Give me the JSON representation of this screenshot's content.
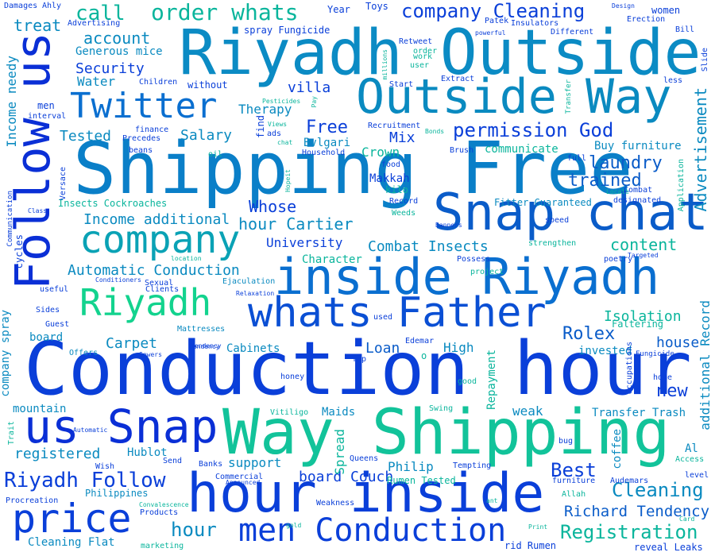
{
  "words": [
    {
      "text": "Conduction hour",
      "color": "#0a3fd9",
      "vertical": false
    },
    {
      "text": "Shipping Free",
      "color": "#0a7fc8",
      "vertical": false
    },
    {
      "text": "Riyadh Outside",
      "color": "#0b8bc4",
      "vertical": false
    },
    {
      "text": "Way Shipping",
      "color": "#12c39a",
      "vertical": false
    },
    {
      "text": "hour inside",
      "color": "#0a3fd9",
      "vertical": false
    },
    {
      "text": "inside Riyadh",
      "color": "#0a6fd0",
      "vertical": false
    },
    {
      "text": "Snap chat",
      "color": "#0a5cc9",
      "vertical": false
    },
    {
      "text": "Follow us",
      "color": "#0a2fd6",
      "vertical": true
    },
    {
      "text": "Outside Way",
      "color": "#0a8ac0",
      "vertical": false
    },
    {
      "text": "us Snap",
      "color": "#0a2fd6",
      "vertical": false
    },
    {
      "text": "whats Father",
      "color": "#0a4fd4",
      "vertical": false
    },
    {
      "text": "price",
      "color": "#0a3fd9",
      "vertical": false
    },
    {
      "text": "company",
      "color": "#0aa2b5",
      "vertical": false
    },
    {
      "text": "Twitter",
      "color": "#0a6fd0",
      "vertical": false
    },
    {
      "text": "Riyadh",
      "color": "#13d38e",
      "vertical": false
    },
    {
      "text": "men Conduction",
      "color": "#0a3fd9",
      "vertical": false
    },
    {
      "text": "order whats",
      "color": "#0ab59c",
      "vertical": false
    },
    {
      "text": "call",
      "color": "#0ab59c",
      "vertical": false
    },
    {
      "text": "company Cleaning",
      "color": "#0a3fd9",
      "vertical": false
    },
    {
      "text": "permission God",
      "color": "#0a3fd9",
      "vertical": false
    },
    {
      "text": "Riyadh Follow",
      "color": "#0a3fd9",
      "vertical": false
    },
    {
      "text": "Registration",
      "color": "#0ab59c",
      "vertical": false
    },
    {
      "text": "Richard Tendency",
      "color": "#0a5cc9",
      "vertical": false
    },
    {
      "text": "Cleaning",
      "color": "#0a8ac0",
      "vertical": false
    },
    {
      "text": "Best",
      "color": "#0a3fd9",
      "vertical": false
    },
    {
      "text": "Rolex",
      "color": "#0a5cc9",
      "vertical": false
    },
    {
      "text": "laundry",
      "color": "#0a5cc9",
      "vertical": false
    },
    {
      "text": "trained",
      "color": "#0a5cc9",
      "vertical": false
    },
    {
      "text": "Advertisement",
      "color": "#0a8ac0",
      "vertical": true
    },
    {
      "text": "content",
      "color": "#0ab59c",
      "vertical": false
    },
    {
      "text": "additional Record",
      "color": "#0a8ac0",
      "vertical": true
    },
    {
      "text": "new",
      "color": "#0a3fd9",
      "vertical": false
    },
    {
      "text": "house",
      "color": "#0a5cc9",
      "vertical": false
    },
    {
      "text": "Isolation",
      "color": "#0ab59c",
      "vertical": false
    },
    {
      "text": "Loan",
      "color": "#0a5cc9",
      "vertical": false
    },
    {
      "text": "Free",
      "color": "#0a3fd9",
      "vertical": false
    },
    {
      "text": "Mix",
      "color": "#0a3fd9",
      "vertical": false
    },
    {
      "text": "Whose",
      "color": "#0a3fd9",
      "vertical": false
    },
    {
      "text": "hour Cartier",
      "color": "#0a8ac0",
      "vertical": false
    },
    {
      "text": "Combat Insects",
      "color": "#0a8ac0",
      "vertical": false
    },
    {
      "text": "University",
      "color": "#0a3fd9",
      "vertical": false
    },
    {
      "text": "Automatic Conduction",
      "color": "#0a8ac0",
      "vertical": false
    },
    {
      "text": "Income additional",
      "color": "#0a8ac0",
      "vertical": false
    },
    {
      "text": "account",
      "color": "#0a8ac0",
      "vertical": false
    },
    {
      "text": "Security",
      "color": "#0a3fd9",
      "vertical": false
    },
    {
      "text": "Salary",
      "color": "#0a8ac0",
      "vertical": false
    },
    {
      "text": "Tested",
      "color": "#0a8ac0",
      "vertical": false
    },
    {
      "text": "Carpet",
      "color": "#0a8ac0",
      "vertical": false
    },
    {
      "text": "villa",
      "color": "#0a3fd9",
      "vertical": false
    },
    {
      "text": "Crown",
      "color": "#0ab59c",
      "vertical": false
    },
    {
      "text": "Bvlgari",
      "color": "#0a8ac0",
      "vertical": false
    },
    {
      "text": "Makkah",
      "color": "#0a3fd9",
      "vertical": false
    },
    {
      "text": "Therapy",
      "color": "#0a8ac0",
      "vertical": false
    },
    {
      "text": "treat",
      "color": "#0a8ac0",
      "vertical": false
    },
    {
      "text": "Income needy",
      "color": "#0a8ac0",
      "vertical": true
    },
    {
      "text": "Water",
      "color": "#0a8ac0",
      "vertical": false
    },
    {
      "text": "Generous mice",
      "color": "#0a8ac0",
      "vertical": false
    },
    {
      "text": "communicate",
      "color": "#0ab59c",
      "vertical": false
    },
    {
      "text": "Buy furniture",
      "color": "#0a8ac0",
      "vertical": false
    },
    {
      "text": "hour",
      "color": "#0a8ac0",
      "vertical": false
    },
    {
      "text": "board Couch",
      "color": "#0a3fd9",
      "vertical": false
    },
    {
      "text": "Cabinets",
      "color": "#0a8ac0",
      "vertical": false
    },
    {
      "text": "High",
      "color": "#0a8ac0",
      "vertical": false
    },
    {
      "text": "invested",
      "color": "#0a8ac0",
      "vertical": false
    },
    {
      "text": "weak",
      "color": "#0a8ac0",
      "vertical": false
    },
    {
      "text": "Philip",
      "color": "#0a8ac0",
      "vertical": false
    },
    {
      "text": "registered",
      "color": "#0a8ac0",
      "vertical": false
    },
    {
      "text": "support",
      "color": "#0a8ac0",
      "vertical": false
    },
    {
      "text": "Spread",
      "color": "#0ab59c",
      "vertical": true
    },
    {
      "text": "Repayment",
      "color": "#0ab59c",
      "vertical": true
    },
    {
      "text": "Character",
      "color": "#0ab59c",
      "vertical": false
    },
    {
      "text": "Hublot",
      "color": "#0a8ac0",
      "vertical": false
    },
    {
      "text": "Transfer Trash",
      "color": "#0a8ac0",
      "vertical": false
    },
    {
      "text": "Cleaning Flat",
      "color": "#0a8ac0",
      "vertical": false
    },
    {
      "text": "company spray",
      "color": "#0a8ac0",
      "vertical": true
    },
    {
      "text": "Maids",
      "color": "#0a8ac0",
      "vertical": false
    },
    {
      "text": "mountain",
      "color": "#0a8ac0",
      "vertical": false
    },
    {
      "text": "board",
      "color": "#0a8ac0",
      "vertical": false
    },
    {
      "text": "coffee",
      "color": "#0a8ac0",
      "vertical": true
    },
    {
      "text": "Al",
      "color": "#0a8ac0",
      "vertical": false
    },
    {
      "text": "Insects Cockroaches",
      "color": "#0ab59c",
      "vertical": false
    },
    {
      "text": "Fitter Guaranteed",
      "color": "#0a8ac0",
      "vertical": false
    },
    {
      "text": "spray Fungicide",
      "color": "#0a3fd9",
      "vertical": false
    },
    {
      "text": "Rumen Tested",
      "color": "#0ab59c",
      "vertical": false
    },
    {
      "text": "rid Rumen",
      "color": "#0a3fd9",
      "vertical": false
    },
    {
      "text": "reveal Leaks",
      "color": "#0a3fd9",
      "vertical": false
    },
    {
      "text": "Philippines",
      "color": "#0a8ac0",
      "vertical": false
    },
    {
      "text": "Products",
      "color": "#0a3fd9",
      "vertical": false
    },
    {
      "text": "Weakness",
      "color": "#0a3fd9",
      "vertical": false
    },
    {
      "text": "Procreation",
      "color": "#0a3fd9",
      "vertical": false
    },
    {
      "text": "without",
      "color": "#0a3fd9",
      "vertical": false
    },
    {
      "text": "Clients",
      "color": "#0a3fd9",
      "vertical": false
    },
    {
      "text": "Ejaculation",
      "color": "#0a8ac0",
      "vertical": false
    },
    {
      "text": "Mattresses",
      "color": "#0a8ac0",
      "vertical": false
    },
    {
      "text": "Offers",
      "color": "#0a8ac0",
      "vertical": false
    },
    {
      "text": "kilo",
      "color": "#0ab59c",
      "vertical": false
    },
    {
      "text": "Record",
      "color": "#0a3fd9",
      "vertical": false
    },
    {
      "text": "Recruitment",
      "color": "#0a3fd9",
      "vertical": false
    },
    {
      "text": "Household",
      "color": "#0a3fd9",
      "vertical": false
    },
    {
      "text": "food",
      "color": "#0a3fd9",
      "vertical": false
    },
    {
      "text": "Brush",
      "color": "#0a3fd9",
      "vertical": false
    },
    {
      "text": "speed",
      "color": "#0a3fd9",
      "vertical": false
    },
    {
      "text": "strengthen",
      "color": "#0ab59c",
      "vertical": false
    },
    {
      "text": "poetry",
      "color": "#0a3fd9",
      "vertical": false
    },
    {
      "text": "Possess",
      "color": "#0a3fd9",
      "vertical": false
    },
    {
      "text": "project",
      "color": "#0ab59c",
      "vertical": false
    },
    {
      "text": "Edemar",
      "color": "#0a3fd9",
      "vertical": false
    },
    {
      "text": "honey",
      "color": "#0a3fd9",
      "vertical": false
    },
    {
      "text": "good",
      "color": "#0ab59c",
      "vertical": false
    },
    {
      "text": "Swing",
      "color": "#0ab59c",
      "vertical": false
    },
    {
      "text": "Vitiligo",
      "color": "#0ab59c",
      "vertical": false
    },
    {
      "text": "Queens",
      "color": "#0a3fd9",
      "vertical": false
    },
    {
      "text": "Tempting",
      "color": "#0a3fd9",
      "vertical": false
    },
    {
      "text": "furniture",
      "color": "#0a3fd9",
      "vertical": false
    },
    {
      "text": "Allah",
      "color": "#0ab59c",
      "vertical": false
    },
    {
      "text": "Audemars",
      "color": "#0a3fd9",
      "vertical": false
    },
    {
      "text": "Access",
      "color": "#0ab59c",
      "vertical": false
    },
    {
      "text": "level",
      "color": "#0a3fd9",
      "vertical": false
    },
    {
      "text": "bug",
      "color": "#0a3fd9",
      "vertical": false
    },
    {
      "text": "Send",
      "color": "#0a3fd9",
      "vertical": false
    },
    {
      "text": "Banks",
      "color": "#0a3fd9",
      "vertical": false
    },
    {
      "text": "Commercial",
      "color": "#0a3fd9",
      "vertical": false
    },
    {
      "text": "Wish",
      "color": "#0a3fd9",
      "vertical": false
    },
    {
      "text": "Guest",
      "color": "#0a3fd9",
      "vertical": false
    },
    {
      "text": "useful",
      "color": "#0a3fd9",
      "vertical": false
    },
    {
      "text": "Sexual",
      "color": "#0a3fd9",
      "vertical": false
    },
    {
      "text": "Precedes",
      "color": "#0a3fd9",
      "vertical": false
    },
    {
      "text": "finance",
      "color": "#0a3fd9",
      "vertical": false
    },
    {
      "text": "beans",
      "color": "#0a3fd9",
      "vertical": false
    },
    {
      "text": "Versace",
      "color": "#0a3fd9",
      "vertical": true
    },
    {
      "text": "oil",
      "color": "#0ab59c",
      "vertical": false
    },
    {
      "text": "ads",
      "color": "#0a3fd9",
      "vertical": false
    },
    {
      "text": "find",
      "color": "#0a3fd9",
      "vertical": true
    },
    {
      "text": "Weeds",
      "color": "#0ab59c",
      "vertical": false
    },
    {
      "text": "Year",
      "color": "#0a3fd9",
      "vertical": false
    },
    {
      "text": "Toys",
      "color": "#0a3fd9",
      "vertical": false
    },
    {
      "text": "Patek",
      "color": "#0a3fd9",
      "vertical": false
    },
    {
      "text": "Insulators",
      "color": "#0a3fd9",
      "vertical": false
    },
    {
      "text": "Different",
      "color": "#0a3fd9",
      "vertical": false
    },
    {
      "text": "Erection",
      "color": "#0a3fd9",
      "vertical": false
    },
    {
      "text": "women",
      "color": "#0a3fd9",
      "vertical": false
    },
    {
      "text": "Retweet",
      "color": "#0a3fd9",
      "vertical": false
    },
    {
      "text": "work",
      "color": "#0ab59c",
      "vertical": false
    },
    {
      "text": "user",
      "color": "#0ab59c",
      "vertical": false
    },
    {
      "text": "order",
      "color": "#0ab59c",
      "vertical": false
    },
    {
      "text": "Start",
      "color": "#0a3fd9",
      "vertical": false
    },
    {
      "text": "Extract",
      "color": "#0a3fd9",
      "vertical": false
    },
    {
      "text": "less",
      "color": "#0a3fd9",
      "vertical": false
    },
    {
      "text": "Bill",
      "color": "#0a3fd9",
      "vertical": false
    },
    {
      "text": "Damages",
      "color": "#0a3fd9",
      "vertical": false
    },
    {
      "text": "Ahly",
      "color": "#0a3fd9",
      "vertical": false
    },
    {
      "text": "Advertising",
      "color": "#0a3fd9",
      "vertical": false
    },
    {
      "text": "Children",
      "color": "#0a3fd9",
      "vertical": false
    },
    {
      "text": "interval",
      "color": "#0a3fd9",
      "vertical": false
    },
    {
      "text": "men",
      "color": "#0a3fd9",
      "vertical": false
    },
    {
      "text": "Class",
      "color": "#0a3fd9",
      "vertical": false
    },
    {
      "text": "cycles",
      "color": "#0a3fd9",
      "vertical": true
    },
    {
      "text": "Communication",
      "color": "#0a3fd9",
      "vertical": true
    },
    {
      "text": "Fungicide",
      "color": "#0a3fd9",
      "vertical": false
    },
    {
      "text": "Tendency",
      "color": "#0a3fd9",
      "vertical": false
    },
    {
      "text": "Occupations",
      "color": "#0a3fd9",
      "vertical": true
    },
    {
      "text": "home",
      "color": "#0a3fd9",
      "vertical": false
    },
    {
      "text": "Faltering",
      "color": "#0ab59c",
      "vertical": false
    },
    {
      "text": "Top",
      "color": "#0a3fd9",
      "vertical": false
    },
    {
      "text": "used",
      "color": "#0a3fd9",
      "vertical": false
    },
    {
      "text": "Relaxation",
      "color": "#0a3fd9",
      "vertical": false
    },
    {
      "text": "Conditioners",
      "color": "#0a3fd9",
      "vertical": false
    },
    {
      "text": "location",
      "color": "#0ab59c",
      "vertical": false
    },
    {
      "text": "Pesticides",
      "color": "#0ab59c",
      "vertical": false
    },
    {
      "text": "Views",
      "color": "#0ab59c",
      "vertical": false
    },
    {
      "text": "chat",
      "color": "#0ab59c",
      "vertical": false
    },
    {
      "text": "Hopeit",
      "color": "#0ab59c",
      "vertical": true
    },
    {
      "text": "Pay",
      "color": "#0ab59c",
      "vertical": true
    },
    {
      "text": "millions",
      "color": "#0ab59c",
      "vertical": true
    },
    {
      "text": "Bonds",
      "color": "#0ab59c",
      "vertical": false
    },
    {
      "text": "Banners",
      "color": "#0a3fd9",
      "vertical": false
    },
    {
      "text": "full",
      "color": "#0a3fd9",
      "vertical": false
    },
    {
      "text": "Locate",
      "color": "#0ab59c",
      "vertical": false
    },
    {
      "text": "Combat",
      "color": "#0a3fd9",
      "vertical": false
    },
    {
      "text": "designated",
      "color": "#0a3fd9",
      "vertical": false
    },
    {
      "text": "Targeted",
      "color": "#0a3fd9",
      "vertical": false
    },
    {
      "text": "Application",
      "color": "#0ab59c",
      "vertical": true
    },
    {
      "text": "Transfer",
      "color": "#0ab59c",
      "vertical": true
    },
    {
      "text": "Slide",
      "color": "#0a3fd9",
      "vertical": true
    },
    {
      "text": "Design",
      "color": "#0a3fd9",
      "vertical": false
    },
    {
      "text": "powerful",
      "color": "#0a3fd9",
      "vertical": false
    },
    {
      "text": "Sides",
      "color": "#0a3fd9",
      "vertical": false
    },
    {
      "text": "Sewers",
      "color": "#0a3fd9",
      "vertical": false
    },
    {
      "text": "Tendency",
      "color": "#0a3fd9",
      "vertical": false
    },
    {
      "text": "Trait",
      "color": "#0ab59c",
      "vertical": true
    },
    {
      "text": "Automatic",
      "color": "#0a3fd9",
      "vertical": false
    },
    {
      "text": "Convalescence",
      "color": "#0ab59c",
      "vertical": false
    },
    {
      "text": "Announced",
      "color": "#0a3fd9",
      "vertical": false
    },
    {
      "text": "gold",
      "color": "#0ab59c",
      "vertical": false
    },
    {
      "text": "marketing",
      "color": "#0ab59c",
      "vertical": false
    },
    {
      "text": "Print",
      "color": "#0ab59c",
      "vertical": false
    },
    {
      "text": "ant",
      "color": "#0ab59c",
      "vertical": false
    },
    {
      "text": "Card",
      "color": "#0ab59c",
      "vertical": false
    },
    {
      "text": "o",
      "color": "#0ab59c",
      "vertical": false
    }
  ]
}
